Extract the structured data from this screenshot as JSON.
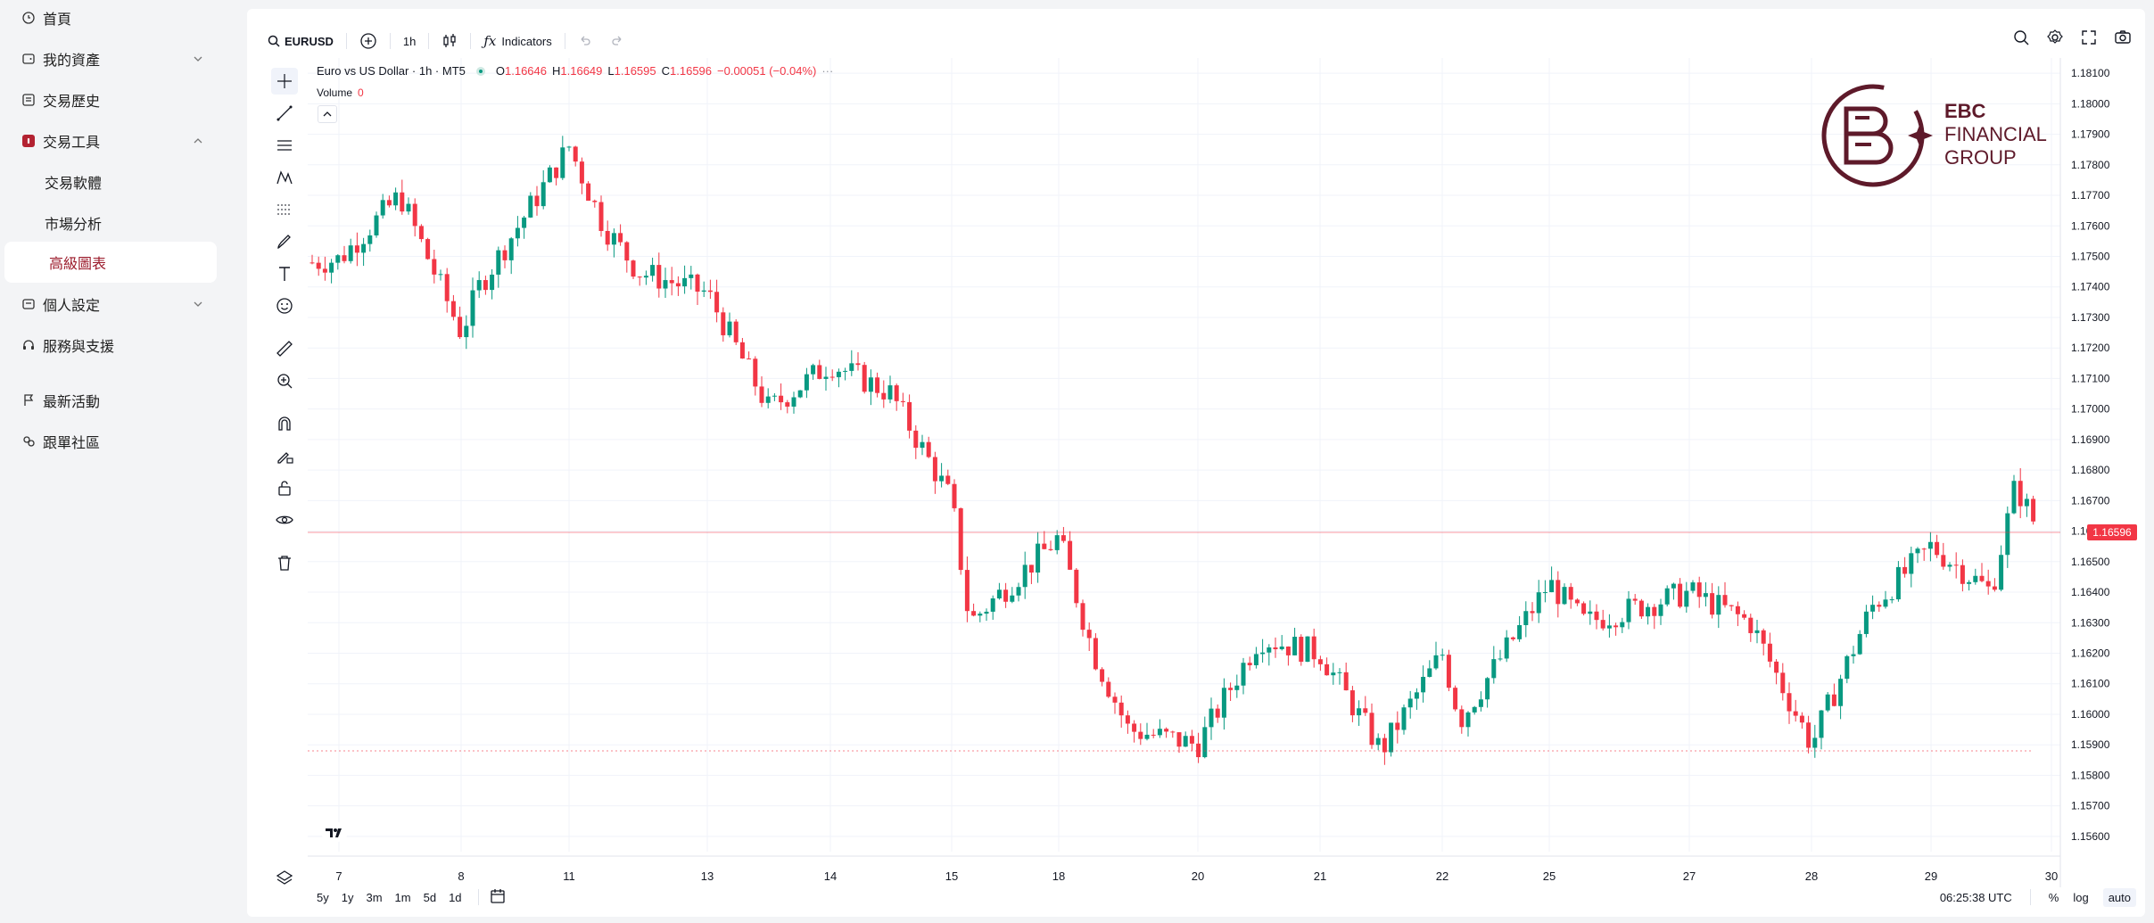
{
  "sidebar": {
    "items": [
      {
        "label": "首頁",
        "icon": "home-icon"
      },
      {
        "label": "我的資產",
        "icon": "wallet-icon"
      },
      {
        "label": "交易歷史",
        "icon": "history-icon"
      },
      {
        "label": "交易工具",
        "icon": "tools-icon"
      },
      {
        "label": "交易軟體"
      },
      {
        "label": "市場分析"
      },
      {
        "label": "高級圖表"
      },
      {
        "label": "個人設定",
        "icon": "user-settings-icon"
      },
      {
        "label": "服務與支援",
        "icon": "headset-icon"
      },
      {
        "label": "最新活動",
        "icon": "flag-icon"
      },
      {
        "label": "跟單社區",
        "icon": "community-icon"
      }
    ],
    "active_color": "#9b1a2a"
  },
  "toolbar": {
    "symbol": "EURUSD",
    "interval": "1h",
    "indicators_label": "Indicators"
  },
  "legend": {
    "title": "Euro vs US Dollar · 1h · MT5",
    "o_label": "O",
    "o_value": "1.16646",
    "h_label": "H",
    "h_value": "1.16649",
    "l_label": "L",
    "l_value": "1.16595",
    "c_label": "C",
    "c_value": "1.16596",
    "change": "−0.00051 (−0.04%)",
    "volume_label": "Volume",
    "volume_value": "0"
  },
  "logo": {
    "line1": "EBC",
    "line2": "FINANCIAL",
    "line3": "GROUP",
    "color": "#5e1a2a"
  },
  "bottom": {
    "ranges": [
      "5y",
      "1y",
      "3m",
      "1m",
      "5d",
      "1d"
    ],
    "clock": "06:25:38 UTC",
    "percent": "%",
    "log": "log",
    "auto": "auto"
  },
  "chart_data": {
    "type": "candlestick",
    "symbol": "EURUSD",
    "timeframe": "1h",
    "x_ticks": [
      "7",
      "8",
      "11",
      "13",
      "14",
      "15",
      "18",
      "20",
      "21",
      "22",
      "25",
      "27",
      "28",
      "29",
      "30"
    ],
    "y_ticks": [
      "1.18100",
      "1.18000",
      "1.17900",
      "1.17800",
      "1.17700",
      "1.17600",
      "1.17500",
      "1.17400",
      "1.17300",
      "1.17200",
      "1.17100",
      "1.17000",
      "1.16900",
      "1.16800",
      "1.16700",
      "1.16600",
      "1.16500",
      "1.16400",
      "1.16300",
      "1.16200",
      "1.16100",
      "1.16000",
      "1.15900",
      "1.15800",
      "1.15700",
      "1.15600"
    ],
    "ylim": [
      1.1555,
      1.1815
    ],
    "last_price": "1.16596",
    "colors": {
      "up": "#089981",
      "down": "#f23645"
    },
    "close_path": [
      {
        "x": "7",
        "close": 1.1749
      },
      {
        "x": "7.5",
        "close": 1.177
      },
      {
        "x": "8",
        "close": 1.1725
      },
      {
        "x": "8.5",
        "close": 1.174
      },
      {
        "x": "11",
        "close": 1.1786
      },
      {
        "x": "11.5",
        "close": 1.176
      },
      {
        "x": "12",
        "close": 1.1745
      },
      {
        "x": "13",
        "close": 1.1738
      },
      {
        "x": "13.5",
        "close": 1.17
      },
      {
        "x": "14",
        "close": 1.1715
      },
      {
        "x": "14.5",
        "close": 1.1705
      },
      {
        "x": "15",
        "close": 1.167
      },
      {
        "x": "15.5",
        "close": 1.163
      },
      {
        "x": "18",
        "close": 1.1658
      },
      {
        "x": "18.5",
        "close": 1.162
      },
      {
        "x": "19",
        "close": 1.1595
      },
      {
        "x": "20",
        "close": 1.159
      },
      {
        "x": "20.5",
        "close": 1.1625
      },
      {
        "x": "21",
        "close": 1.162
      },
      {
        "x": "21.5",
        "close": 1.1588
      },
      {
        "x": "22",
        "close": 1.162
      },
      {
        "x": "22.5",
        "close": 1.1598
      },
      {
        "x": "25",
        "close": 1.1643
      },
      {
        "x": "25.5",
        "close": 1.163
      },
      {
        "x": "27",
        "close": 1.164
      },
      {
        "x": "27.5",
        "close": 1.163
      },
      {
        "x": "28",
        "close": 1.159
      },
      {
        "x": "28.5",
        "close": 1.1635
      },
      {
        "x": "29",
        "close": 1.1655
      },
      {
        "x": "29.5",
        "close": 1.164
      },
      {
        "x": "29.7",
        "close": 1.1675
      },
      {
        "x": "29.9",
        "close": 1.16596
      }
    ]
  }
}
